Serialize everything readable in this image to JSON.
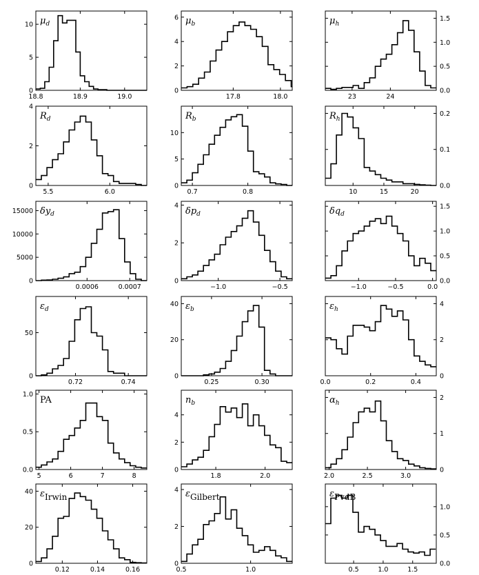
{
  "chart_data": [
    {
      "type": "histogram",
      "label_main": "μ",
      "label_sub": "d",
      "ylim": [
        0,
        12
      ],
      "yticks": [
        0,
        5,
        10
      ],
      "xlim": [
        18.8,
        19.05
      ],
      "xticks": [
        18.8,
        18.9,
        19.0
      ],
      "xtick_labels": [
        "18.8",
        "18.9",
        "19.0"
      ],
      "bin_start": 18.8,
      "bin_width": 0.01,
      "counts": [
        0.2,
        0.3,
        1.3,
        3.5,
        7.5,
        11.3,
        10.2,
        10.6,
        10.6,
        5.8,
        2.2,
        1.3,
        0.6,
        0.2,
        0.1,
        0.1,
        0,
        0,
        0,
        0,
        0,
        0,
        0,
        0,
        0
      ],
      "ytick_side": "left"
    },
    {
      "type": "histogram",
      "label_main": "μ",
      "label_sub": "b",
      "ylim": [
        0,
        6.5
      ],
      "yticks": [
        0,
        2,
        4,
        6
      ],
      "xlim": [
        17.58,
        18.05
      ],
      "xticks": [
        17.8,
        18.0
      ],
      "xtick_labels": [
        "17.8",
        "18.0"
      ],
      "bin_start": 17.58,
      "bin_width": 0.0245,
      "counts": [
        0.2,
        0.3,
        0.5,
        1.0,
        1.5,
        2.4,
        3.3,
        4.0,
        4.8,
        5.3,
        5.6,
        5.3,
        5.0,
        4.4,
        3.6,
        2.1,
        1.7,
        1.3,
        0.8,
        0.3
      ],
      "ytick_side": "left"
    },
    {
      "type": "histogram",
      "label_main": "μ",
      "label_sub": "h",
      "ylim": [
        0,
        1.65
      ],
      "yticks": [
        0,
        0.5,
        1.0,
        1.5
      ],
      "ytick_labels": [
        "0.0",
        "0.5",
        "1.0",
        "1.5"
      ],
      "xlim": [
        22.3,
        25.2
      ],
      "xticks": [
        23,
        24
      ],
      "xtick_labels": [
        "23",
        "24"
      ],
      "bin_start": 22.3,
      "bin_width": 0.145,
      "counts": [
        0.04,
        0.02,
        0.04,
        0.06,
        0.06,
        0.1,
        0.04,
        0.16,
        0.26,
        0.5,
        0.65,
        0.75,
        0.95,
        1.2,
        1.45,
        1.25,
        0.8,
        0.4,
        0.1,
        0.05
      ],
      "ytick_side": "right"
    },
    {
      "type": "histogram",
      "label_main": "R",
      "label_sub": "d",
      "ylim": [
        0,
        4
      ],
      "yticks": [
        0,
        2,
        4
      ],
      "xlim": [
        5.4,
        6.3
      ],
      "xticks": [
        5.5,
        6.0
      ],
      "xtick_labels": [
        "5.5",
        "6.0"
      ],
      "bin_start": 5.4,
      "bin_width": 0.045,
      "counts": [
        0.3,
        0.5,
        0.9,
        1.3,
        1.6,
        2.2,
        2.8,
        3.2,
        3.5,
        3.2,
        2.3,
        1.5,
        0.6,
        0.5,
        0.2,
        0.1,
        0.1,
        0.1,
        0.05,
        0
      ],
      "ytick_side": "left"
    },
    {
      "type": "histogram",
      "label_main": "R",
      "label_sub": "b",
      "ylim": [
        0,
        15
      ],
      "yticks": [
        0,
        5,
        10
      ],
      "xlim": [
        0.68,
        0.88
      ],
      "xticks": [
        0.7,
        0.8
      ],
      "xtick_labels": [
        "0.7",
        "0.8"
      ],
      "bin_start": 0.68,
      "bin_width": 0.01,
      "counts": [
        0.5,
        1.0,
        2.4,
        4.0,
        5.8,
        7.8,
        9.5,
        11.0,
        12.4,
        13.0,
        13.4,
        11.2,
        6.5,
        2.6,
        2.2,
        1.6,
        0.5,
        0.3,
        0.2,
        0
      ],
      "ytick_side": "left"
    },
    {
      "type": "histogram",
      "label_main": "R",
      "label_sub": "h",
      "ylim": [
        0,
        0.22
      ],
      "yticks": [
        0,
        0.1,
        0.2
      ],
      "ytick_labels": [
        "0.0",
        "0.1",
        "0.2"
      ],
      "xlim": [
        5.5,
        23.5
      ],
      "xticks": [
        10,
        15,
        20
      ],
      "xtick_labels": [
        "10",
        "15",
        "20"
      ],
      "bin_start": 5.5,
      "bin_width": 0.9,
      "counts": [
        0.02,
        0.06,
        0.14,
        0.2,
        0.19,
        0.16,
        0.13,
        0.05,
        0.04,
        0.03,
        0.02,
        0.015,
        0.01,
        0.01,
        0.005,
        0.005,
        0.003,
        0.002,
        0.001,
        0
      ],
      "ytick_side": "right"
    },
    {
      "type": "histogram",
      "label_main": "δy",
      "label_sub": "d",
      "ylim": [
        0,
        17000
      ],
      "yticks": [
        0,
        5000,
        10000,
        15000
      ],
      "xlim": [
        0.00048,
        0.00074
      ],
      "xticks": [
        0.0006,
        0.0007
      ],
      "xtick_labels": [
        "0.0006",
        "0.0007"
      ],
      "bin_start": 0.00048,
      "bin_width": 1.3e-05,
      "counts": [
        0,
        100,
        150,
        300,
        500,
        800,
        1500,
        1800,
        3000,
        5000,
        8000,
        11000,
        14500,
        14800,
        15200,
        9000,
        4000,
        1500,
        300,
        0
      ],
      "ytick_side": "left"
    },
    {
      "type": "histogram",
      "label_main": "δp",
      "label_sub": "d",
      "ylim": [
        0,
        4.2
      ],
      "yticks": [
        0,
        2,
        4
      ],
      "xlim": [
        -1.3,
        -0.4
      ],
      "xticks": [
        -1.0,
        -0.5
      ],
      "xtick_labels": [
        "−1.0",
        "−0.5"
      ],
      "bin_start": -1.3,
      "bin_width": 0.045,
      "counts": [
        0.1,
        0.2,
        0.3,
        0.5,
        0.8,
        1.1,
        1.4,
        1.9,
        2.3,
        2.6,
        2.9,
        3.3,
        3.7,
        3.1,
        2.4,
        1.6,
        1.0,
        0.5,
        0.2,
        0.1
      ],
      "ytick_side": "left"
    },
    {
      "type": "histogram",
      "label_main": "δq",
      "label_sub": "d",
      "ylim": [
        0,
        1.6
      ],
      "yticks": [
        0,
        0.5,
        1.0,
        1.5
      ],
      "ytick_labels": [
        "0.0",
        "0.5",
        "1.0",
        "1.5"
      ],
      "xlim": [
        -1.45,
        0.05
      ],
      "xticks": [
        -1.0,
        -0.5,
        0.0
      ],
      "xtick_labels": [
        "−1.0",
        "−0.5",
        "0.0"
      ],
      "bin_start": -1.45,
      "bin_width": 0.075,
      "counts": [
        0.05,
        0.1,
        0.3,
        0.6,
        0.8,
        0.95,
        1.0,
        1.1,
        1.2,
        1.25,
        1.15,
        1.3,
        1.1,
        0.95,
        0.8,
        0.5,
        0.3,
        0.45,
        0.35,
        0.2
      ],
      "ytick_side": "right"
    },
    {
      "type": "histogram",
      "label_main": "ε",
      "label_sub": "d",
      "ylim": [
        0,
        92
      ],
      "yticks": [
        0,
        50
      ],
      "xlim": [
        0.705,
        0.747
      ],
      "xticks": [
        0.72,
        0.74
      ],
      "xtick_labels": [
        "0.72",
        "0.74"
      ],
      "bin_start": 0.705,
      "bin_width": 0.0021,
      "counts": [
        0,
        1,
        3,
        8,
        12,
        20,
        40,
        65,
        78,
        80,
        50,
        46,
        30,
        5,
        3,
        3,
        0,
        0,
        0,
        0
      ],
      "ytick_side": "left"
    },
    {
      "type": "histogram",
      "label_main": "ε",
      "label_sub": "b",
      "ylim": [
        0,
        44
      ],
      "yticks": [
        0,
        20,
        40
      ],
      "xlim": [
        0.22,
        0.33
      ],
      "xticks": [
        0.25,
        0.3
      ],
      "xtick_labels": [
        "0.25",
        "0.30"
      ],
      "bin_start": 0.22,
      "bin_width": 0.0055,
      "counts": [
        0,
        0,
        0,
        0,
        0.5,
        1,
        2,
        4,
        8,
        14,
        22,
        30,
        36,
        39,
        27,
        3,
        1,
        0,
        0,
        0
      ],
      "ytick_side": "left"
    },
    {
      "type": "histogram",
      "label_main": "ε",
      "label_sub": "h",
      "ylim": [
        0,
        4.4
      ],
      "yticks": [
        0,
        2,
        4
      ],
      "xlim": [
        0,
        0.49
      ],
      "xticks": [
        0.0,
        0.2,
        0.4
      ],
      "xtick_labels": [
        "0.0",
        "0.2",
        "0.4"
      ],
      "bin_start": 0,
      "bin_width": 0.0245,
      "counts": [
        2.1,
        2.0,
        1.5,
        1.2,
        2.2,
        2.8,
        2.8,
        2.7,
        2.5,
        3.0,
        3.9,
        3.7,
        3.3,
        3.6,
        3.1,
        2.0,
        1.1,
        0.8,
        0.6,
        0.5
      ],
      "ytick_side": "right"
    },
    {
      "type": "histogram",
      "label_main": "PA",
      "label_sub": "",
      "ylim": [
        0,
        1.05
      ],
      "yticks": [
        0,
        0.5,
        1.0
      ],
      "ytick_labels": [
        "0.0",
        "0.5",
        "1.0"
      ],
      "xlim": [
        4.9,
        8.4
      ],
      "xticks": [
        5,
        6,
        7,
        8
      ],
      "xtick_labels": [
        "5",
        "6",
        "7",
        "8"
      ],
      "bin_start": 4.9,
      "bin_width": 0.175,
      "counts": [
        0.03,
        0.06,
        0.1,
        0.14,
        0.24,
        0.4,
        0.45,
        0.55,
        0.65,
        0.88,
        0.88,
        0.7,
        0.65,
        0.35,
        0.22,
        0.14,
        0.09,
        0.05,
        0.03,
        0.02
      ],
      "ytick_side": "left"
    },
    {
      "type": "histogram",
      "label_main": "n",
      "label_sub": "b",
      "ylim": [
        0,
        5.8
      ],
      "yticks": [
        0,
        2,
        4
      ],
      "xlim": [
        1.66,
        2.11
      ],
      "xticks": [
        1.8,
        2.0
      ],
      "xtick_labels": [
        "1.8",
        "2.0"
      ],
      "bin_start": 1.66,
      "bin_width": 0.0225,
      "counts": [
        0.2,
        0.4,
        0.7,
        0.9,
        1.4,
        2.4,
        3.3,
        4.6,
        4.2,
        4.5,
        3.8,
        4.8,
        3.2,
        4.0,
        3.2,
        2.5,
        1.8,
        1.6,
        0.6,
        0.5
      ],
      "ytick_side": "left"
    },
    {
      "type": "histogram",
      "label_main": "α",
      "label_sub": "h",
      "ylim": [
        0,
        2.2
      ],
      "yticks": [
        0,
        1,
        2
      ],
      "xlim": [
        1.95,
        3.4
      ],
      "xticks": [
        2.0,
        2.5,
        3.0
      ],
      "xtick_labels": [
        "2.0",
        "2.5",
        "3.0"
      ],
      "bin_start": 1.95,
      "bin_width": 0.0725,
      "counts": [
        0.05,
        0.15,
        0.3,
        0.55,
        0.9,
        1.3,
        1.6,
        1.7,
        1.6,
        1.9,
        1.35,
        0.8,
        0.5,
        0.3,
        0.25,
        0.15,
        0.1,
        0.05,
        0.03,
        0.02
      ],
      "ytick_side": "right"
    },
    {
      "type": "histogram",
      "label_main": "ε",
      "label_sub": "Irwin",
      "ylim": [
        0,
        44
      ],
      "yticks": [
        0,
        20,
        40
      ],
      "xlim": [
        0.105,
        0.168
      ],
      "xticks": [
        0.12,
        0.14,
        0.16
      ],
      "xtick_labels": [
        "0.12",
        "0.14",
        "0.16"
      ],
      "bin_start": 0.105,
      "bin_width": 0.00315,
      "counts": [
        1,
        3,
        8,
        15,
        25,
        26,
        36,
        39,
        37,
        35,
        30,
        25,
        18,
        13,
        8,
        3,
        2,
        0.5,
        0.3,
        0.2
      ],
      "ytick_side": "left"
    },
    {
      "type": "histogram",
      "label_main": "ε",
      "label_sub": "Gilbert",
      "ylim": [
        0,
        4.3
      ],
      "yticks": [
        0,
        2,
        4
      ],
      "xlim": [
        0.5,
        1.3
      ],
      "xticks": [
        0.5,
        1.0
      ],
      "xtick_labels": [
        "0.5",
        "1.0"
      ],
      "bin_start": 0.5,
      "bin_width": 0.04,
      "counts": [
        0.1,
        0.5,
        1.0,
        1.3,
        2.1,
        2.3,
        2.7,
        3.6,
        2.4,
        2.9,
        1.9,
        1.5,
        1.0,
        0.6,
        0.7,
        0.9,
        0.7,
        0.4,
        0.3,
        0.1
      ],
      "ytick_side": "left"
    },
    {
      "type": "histogram",
      "label_main": "ε",
      "label_sub": "PvdB",
      "ylim": [
        0,
        1.4
      ],
      "yticks": [
        0,
        0.5,
        1.0
      ],
      "ytick_labels": [
        "0.0",
        "0.5",
        "1.0"
      ],
      "xlim": [
        0.02,
        1.9
      ],
      "xticks": [
        0.5,
        1.0,
        1.5
      ],
      "xtick_labels": [
        "0.5",
        "1.0",
        "1.5"
      ],
      "bin_start": 0.02,
      "bin_width": 0.0935,
      "counts": [
        0.7,
        1.15,
        1.2,
        1.15,
        1.2,
        0.9,
        0.55,
        0.65,
        0.6,
        0.5,
        0.4,
        0.3,
        0.3,
        0.35,
        0.25,
        0.2,
        0.18,
        0.2,
        0.14,
        0.25
      ],
      "ytick_side": "right"
    }
  ]
}
